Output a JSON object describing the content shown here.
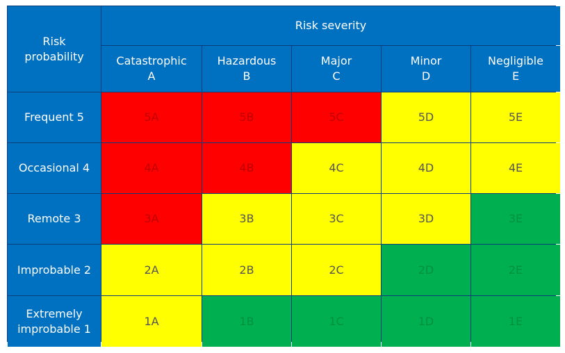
{
  "corner_label": [
    "Risk",
    "probability"
  ],
  "severity_title": "Risk severity",
  "severity_columns": [
    {
      "name": "Catastrophic",
      "code": "A"
    },
    {
      "name": "Hazardous",
      "code": "B"
    },
    {
      "name": "Major",
      "code": "C"
    },
    {
      "name": "Minor",
      "code": "D"
    },
    {
      "name": "Negligible",
      "code": "E"
    }
  ],
  "probability_rows": [
    {
      "label": [
        "Frequent 5"
      ],
      "cells": [
        "5A",
        "5B",
        "5C",
        "5D",
        "5E"
      ],
      "levels": [
        "red",
        "red",
        "red",
        "yellow",
        "yellow"
      ]
    },
    {
      "label": [
        "Occasional 4"
      ],
      "cells": [
        "4A",
        "4B",
        "4C",
        "4D",
        "4E"
      ],
      "levels": [
        "red",
        "red",
        "yellow",
        "yellow",
        "yellow"
      ]
    },
    {
      "label": [
        "Remote 3"
      ],
      "cells": [
        "3A",
        "3B",
        "3C",
        "3D",
        "3E"
      ],
      "levels": [
        "red",
        "yellow",
        "yellow",
        "yellow",
        "green"
      ]
    },
    {
      "label": [
        "Improbable 2"
      ],
      "cells": [
        "2A",
        "2B",
        "2C",
        "2D",
        "2E"
      ],
      "levels": [
        "yellow",
        "yellow",
        "yellow",
        "green",
        "green"
      ]
    },
    {
      "label": [
        "Extremely",
        "improbable 1"
      ],
      "cells": [
        "1A",
        "1B",
        "1C",
        "1D",
        "1E"
      ],
      "levels": [
        "yellow",
        "green",
        "green",
        "green",
        "green"
      ]
    }
  ],
  "colors": {
    "header": "#0070c0",
    "red": "#ff0000",
    "yellow": "#ffff00",
    "green": "#00b050"
  }
}
